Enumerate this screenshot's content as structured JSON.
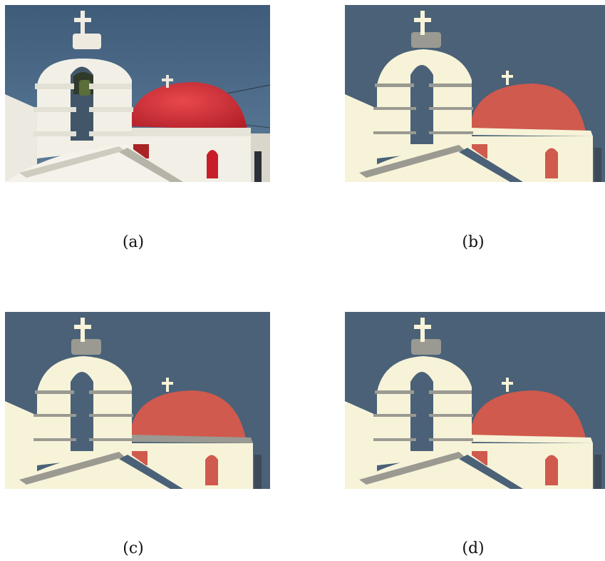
{
  "figure": {
    "panels": [
      {
        "id": "a",
        "caption": "(a)",
        "kind": "original-photo"
      },
      {
        "id": "b",
        "caption": "(b)",
        "kind": "segmented"
      },
      {
        "id": "c",
        "caption": "(c)",
        "kind": "segmented"
      },
      {
        "id": "d",
        "caption": "(d)",
        "kind": "segmented"
      }
    ]
  },
  "colors": {
    "photo_sky": "#3d5a78",
    "photo_white": "#f2f0e6",
    "photo_dome": "#d42e33",
    "seg_sky": "#4a6178",
    "seg_white": "#f7f3d8",
    "seg_dome": "#cf5a4d",
    "seg_gray": "#9a9a92"
  }
}
